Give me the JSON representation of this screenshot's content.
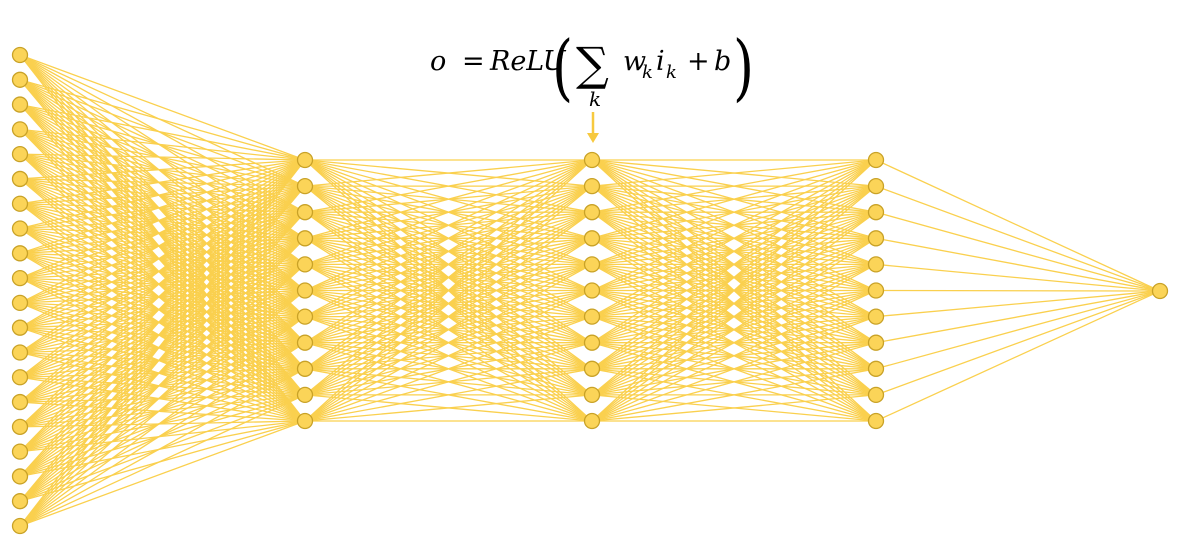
{
  "formula": {
    "output": "o",
    "equals": "=",
    "activation": "ReLU",
    "sum_symbol": "∑",
    "sum_index": "k",
    "weight": "w",
    "weight_sub": "k",
    "input": "i",
    "input_sub": "k",
    "plus": "+",
    "bias": "b",
    "open_paren": "(",
    "close_paren": ")"
  },
  "network": {
    "layers": [
      {
        "name": "input",
        "node_count": 20
      },
      {
        "name": "hidden-1",
        "node_count": 11
      },
      {
        "name": "hidden-2",
        "node_count": 11
      },
      {
        "name": "hidden-3",
        "node_count": 11
      },
      {
        "name": "output",
        "node_count": 1
      }
    ],
    "highlighted_node": {
      "layer": 2,
      "index": 0
    }
  },
  "colors": {
    "node_fill": "#FBD458",
    "node_stroke": "#C9A227",
    "edge": "#FAD04E",
    "arrow": "#F7C93F",
    "text": "#000000"
  }
}
